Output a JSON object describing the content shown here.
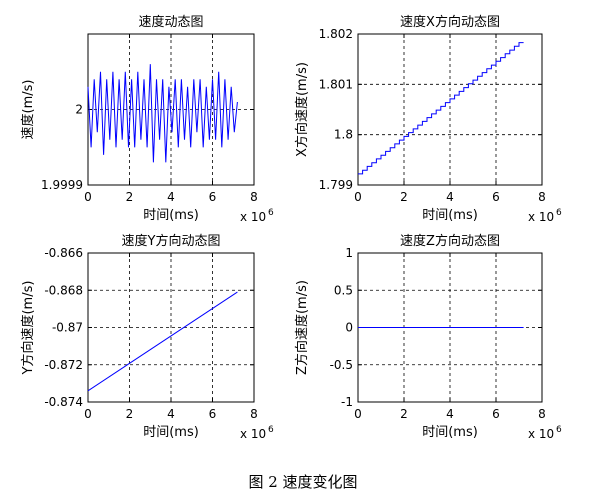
{
  "caption": "图 2 速度变化图",
  "colors": {
    "line": "#0000ff",
    "axes": "#000000",
    "grid": "#000000",
    "background": "#ffffff"
  },
  "chart_data": [
    {
      "type": "line",
      "title": "速度动态图",
      "xlabel": "时间(ms)",
      "ylabel": "速度(m/s)",
      "xlim": [
        0,
        8
      ],
      "ylim": [
        1.9999,
        2.0001
      ],
      "x_multiplier": "x 10",
      "x_exponent": "6",
      "xticks": [
        0,
        2,
        4,
        6,
        8
      ],
      "xtick_labels": [
        "0",
        "2",
        "4",
        "6",
        "8"
      ],
      "yticks": [
        1.9999,
        2
      ],
      "ytick_labels": [
        "1.9999",
        "2"
      ],
      "grid": true,
      "series": [
        {
          "style": "oscillating",
          "x": [
            0,
            0.15,
            0.3,
            0.45,
            0.6,
            0.75,
            0.9,
            1.05,
            1.2,
            1.35,
            1.5,
            1.65,
            1.8,
            1.95,
            2.1,
            2.25,
            2.4,
            2.55,
            2.7,
            2.85,
            3.0,
            3.15,
            3.3,
            3.45,
            3.6,
            3.75,
            3.9,
            4.05,
            4.2,
            4.35,
            4.5,
            4.65,
            4.8,
            4.95,
            5.1,
            5.25,
            5.4,
            5.55,
            5.7,
            5.85,
            6.0,
            6.15,
            6.3,
            6.45,
            6.6,
            6.75,
            6.9,
            7.05,
            7.2
          ],
          "y": [
            2.00003,
            1.99995,
            2.00004,
            1.99997,
            2.00005,
            1.99994,
            2.00004,
            1.99996,
            2.00005,
            1.99995,
            2.00004,
            1.99996,
            2.00005,
            1.99995,
            2.00004,
            1.99995,
            2.00005,
            1.99996,
            2.00004,
            1.99995,
            2.00006,
            1.99993,
            2.00004,
            1.99996,
            2.00004,
            1.99993,
            2.00003,
            1.99997,
            2.00004,
            1.99995,
            2.00004,
            1.99996,
            2.00003,
            1.99995,
            2.00004,
            1.99997,
            2.00004,
            1.99995,
            2.00003,
            1.99996,
            2.00004,
            1.99996,
            2.00005,
            1.99995,
            2.00004,
            1.99996,
            2.00003,
            1.99997,
            2.00001
          ]
        }
      ]
    },
    {
      "type": "line",
      "title": "速度X方向动态图",
      "xlabel": "时间(ms)",
      "ylabel": "X方向速度(m/s)",
      "xlim": [
        0,
        8
      ],
      "ylim": [
        1.799,
        1.802
      ],
      "x_multiplier": "x 10",
      "x_exponent": "6",
      "xticks": [
        0,
        2,
        4,
        6,
        8
      ],
      "xtick_labels": [
        "0",
        "2",
        "4",
        "6",
        "8"
      ],
      "yticks": [
        1.799,
        1.8,
        1.801,
        1.802
      ],
      "ytick_labels": [
        "1.799",
        "1.8",
        "1.801",
        "1.802"
      ],
      "grid": true,
      "series": [
        {
          "style": "staircase",
          "x": [
            0,
            7.2
          ],
          "y": [
            1.79922,
            1.80183
          ],
          "steps": 36
        }
      ]
    },
    {
      "type": "line",
      "title": "速度Y方向动态图",
      "xlabel": "时间(ms)",
      "ylabel": "Y方向速度(m/s)",
      "xlim": [
        0,
        8
      ],
      "ylim": [
        -0.874,
        -0.866
      ],
      "x_multiplier": "x 10",
      "x_exponent": "6",
      "xticks": [
        0,
        2,
        4,
        6,
        8
      ],
      "xtick_labels": [
        "0",
        "2",
        "4",
        "6",
        "8"
      ],
      "yticks": [
        -0.866,
        -0.868,
        -0.87,
        -0.872,
        -0.874
      ],
      "ytick_labels": [
        "-0.866",
        "-0.868",
        "-0.87",
        "-0.872",
        "-0.874"
      ],
      "grid": true,
      "series": [
        {
          "style": "line",
          "x": [
            0,
            7.2
          ],
          "y": [
            -0.8734,
            -0.8681
          ]
        }
      ]
    },
    {
      "type": "line",
      "title": "速度Z方向动态图",
      "xlabel": "时间(ms)",
      "ylabel": "Z方向速度(m/s)",
      "xlim": [
        0,
        8
      ],
      "ylim": [
        -1,
        1
      ],
      "x_multiplier": "x 10",
      "x_exponent": "6",
      "xticks": [
        0,
        2,
        4,
        6,
        8
      ],
      "xtick_labels": [
        "0",
        "2",
        "4",
        "6",
        "8"
      ],
      "yticks": [
        1,
        0.5,
        0,
        -0.5,
        -1
      ],
      "ytick_labels": [
        "1",
        "0.5",
        "0",
        "-0.5",
        "-1"
      ],
      "grid": true,
      "series": [
        {
          "style": "line",
          "x": [
            0,
            7.2
          ],
          "y": [
            0,
            0
          ]
        }
      ]
    }
  ]
}
